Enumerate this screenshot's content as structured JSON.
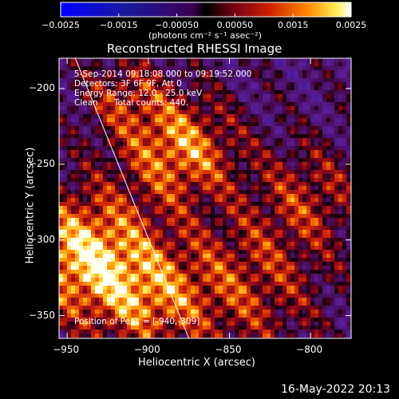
{
  "chart_data": {
    "type": "heatmap",
    "title": "Reconstructed RHESSI Image",
    "xlabel": "Heliocentric X (arcsec)",
    "ylabel": "Heliocentric Y (arcsec)",
    "xlim": [
      -955,
      -775
    ],
    "ylim": [
      -365,
      -180
    ],
    "xticks": [
      -950,
      -900,
      -850,
      -800
    ],
    "xtick_labels": [
      "−950",
      "−900",
      "−850",
      "−800"
    ],
    "yticks": [
      -200,
      -250,
      -300,
      -350
    ],
    "ytick_labels": [
      "−200",
      "−250",
      "−300",
      "−350"
    ],
    "colorbar": {
      "range": [
        -0.0025,
        0.0025
      ],
      "ticks": [
        -0.0025,
        -0.0015,
        -0.0005,
        0.0005,
        0.0015,
        0.0025
      ],
      "tick_labels": [
        "−0.0025",
        "−0.0015",
        "−0.00050",
        "0.00050",
        "0.0015",
        "0.0025"
      ],
      "units_label": "(photons cm⁻² s⁻¹ asec⁻²)"
    },
    "annotations": {
      "time": "5-Sep-2014 09:18:08.000 to 09:19:52.000",
      "detectors": "Detectors: 3F 6F 9F, Att 0",
      "energy": "Energy Range: 12.0 - 25.0 keV",
      "clean": "Clean      Total counts: 440.",
      "peak": "Position of Peak = [-940,-309]"
    },
    "peak": {
      "x": -940,
      "y": -309
    },
    "limb_line": {
      "x": [
        -945,
        -875
      ],
      "y": [
        -180,
        -365
      ]
    }
  },
  "footer_date": "16-May-2022 20:13"
}
